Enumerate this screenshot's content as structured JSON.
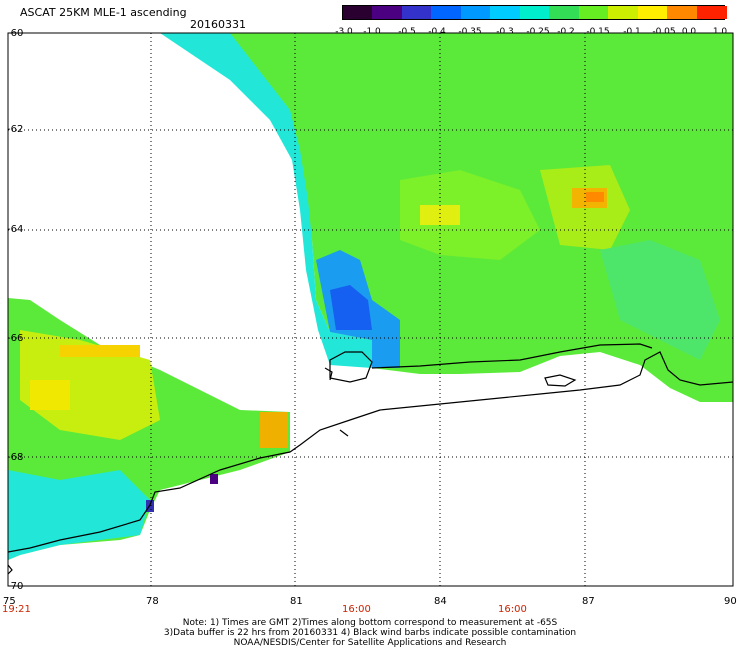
{
  "header": {
    "title": "ASCAT 25KM MLE-1 ascending",
    "date": "20160331"
  },
  "colorbar": {
    "labels": [
      "-3.0",
      "-1.0",
      "-0.5",
      "-0.4",
      "-0.35",
      "-0.3",
      "-0.25",
      "-0.2",
      "-0.15",
      "-0.1",
      "-0.05",
      "0.0",
      "1.0"
    ],
    "colors": [
      "#2a0030",
      "#4b0082",
      "#3333cc",
      "#0066ff",
      "#0099ff",
      "#00ccff",
      "#00eecc",
      "#33dd55",
      "#66ee22",
      "#ccee00",
      "#ffee00",
      "#ff8800",
      "#ff2200"
    ]
  },
  "axes": {
    "lat_labels": [
      "-60",
      "-62",
      "-64",
      "-66",
      "-68",
      "-70"
    ],
    "lon_labels": [
      "75",
      "78",
      "81",
      "84",
      "87",
      "90"
    ],
    "time_labels": [
      {
        "text": "19:21",
        "color": "#cc2200"
      },
      {
        "text": "16:00",
        "color": "#cc2200"
      },
      {
        "text": "16:00",
        "color": "#cc2200"
      }
    ]
  },
  "footer": {
    "line1": "Note: 1) Times are GMT 2)Times along bottom correspond to measurement at -65S",
    "line2": "3)Data buffer is 22 hrs from 20160331 4) Black wind barbs indicate possible contamination",
    "line3": "NOAA/NESDIS/Center for Satellite Applications and Research"
  }
}
